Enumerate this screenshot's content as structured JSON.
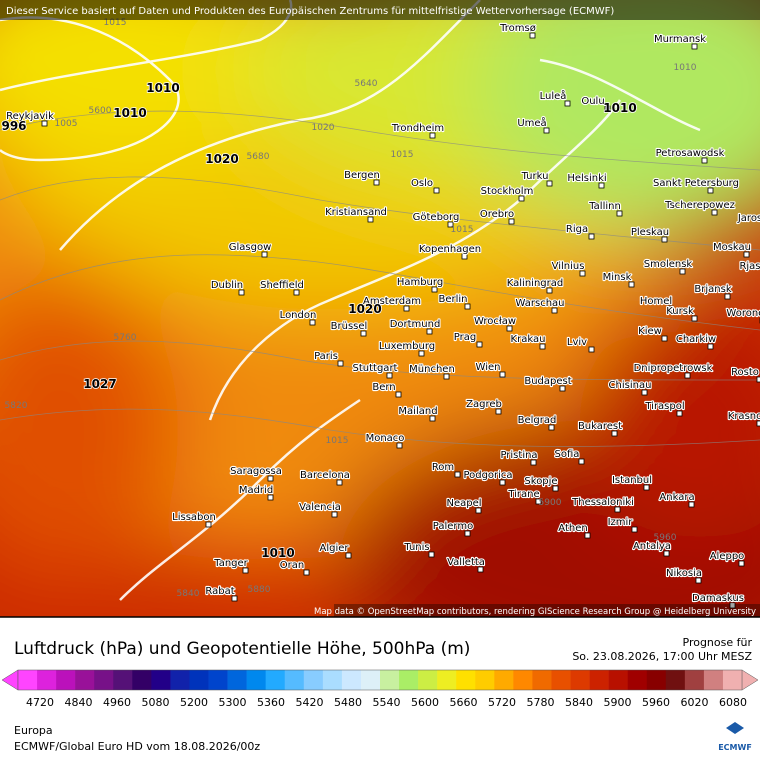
{
  "banner": "Dieser Service basiert auf Daten und Produkten des Europäischen Zentrums für mittelfristige Wettervorhersage (ECMWF)",
  "attribution": "Map data © OpenStreetMap contributors, rendering GIScience Research Group @ Heidelberg University",
  "cities": [
    "Tromsø",
    "Murmansk",
    "Luleå",
    "Oulu",
    "Reykjavik",
    "Trondheim",
    "Umeå",
    "Petrosawodsk",
    "Bergen",
    "Oslo",
    "Turku",
    "Helsinki",
    "Sankt Petersburg",
    "Stockholm",
    "Kristiansand",
    "Göteborg",
    "Orebro",
    "Tallinn",
    "Tscherepowez",
    "Jaros",
    "Riga",
    "Pleskau",
    "Kopenhagen",
    "Moskau",
    "Glasgow",
    "Vilnius",
    "Smolensk",
    "Rjas",
    "Minsk",
    "Hamburg",
    "Kaliningrad",
    "Dublin",
    "Sheffield",
    "Brjansk",
    "Amsterdam",
    "Berlin",
    "Warschau",
    "Homel",
    "Kursk",
    "Woronez",
    "London",
    "Brüssel",
    "Dortmund",
    "Wrocław",
    "Kiew",
    "Krakau",
    "Prag",
    "Lviv",
    "Charkiw",
    "Luxemburg",
    "Paris",
    "Stuttgart",
    "München",
    "Wien",
    "Dnipropetrowsk",
    "Chisinau",
    "Rosto",
    "Budapest",
    "Bern",
    "Tiraspol",
    "Zagreb",
    "Mailand",
    "Krasno",
    "Belgrad",
    "Bukarest",
    "Monaco",
    "Pristina",
    "Sofia",
    "Rom",
    "Podgorica",
    "Saragossa",
    "Barcelona",
    "Skopje",
    "Istanbul",
    "Madrid",
    "Ankara",
    "Tirane",
    "Thessaloniki",
    "Valencia",
    "Neapel",
    "Lissabon",
    "Palermo",
    "Athen",
    "Izmir",
    "Antalya",
    "Algier",
    "Tunis",
    "Aleppo",
    "Tanger",
    "Oran",
    "Valletta",
    "Nikosia",
    "Rabat",
    "Damaskus"
  ],
  "contour_labels": [
    "1015",
    "1010",
    "1010",
    "996",
    "1005",
    "1020",
    "1020",
    "1027",
    "1015",
    "1015",
    "1020",
    "1010",
    "1010",
    "1015",
    "1010",
    "5600",
    "5640",
    "5680",
    "5760",
    "5820",
    "5840",
    "5880",
    "5900",
    "5960"
  ],
  "legend": {
    "title": "Luftdruck (hPa) und Geopotentielle Höhe, 500hPa (m)",
    "forecast_label": "Prognose für",
    "forecast_time": "So. 23.08.2026, 17:00 Uhr MESZ",
    "colors": [
      "#ff44ff",
      "#dd22dd",
      "#bb11bb",
      "#991199",
      "#771188",
      "#551177",
      "#330066",
      "#220088",
      "#1122aa",
      "#0033bb",
      "#0044cc",
      "#0066dd",
      "#0088ee",
      "#22aaff",
      "#55bbff",
      "#88ccff",
      "#aaddff",
      "#cce8ff",
      "#ddf0f8",
      "#c8f0a0",
      "#aaee66",
      "#ccee44",
      "#eeee22",
      "#ffe000",
      "#ffcc00",
      "#ffaa00",
      "#ff8800",
      "#f06a00",
      "#e85000",
      "#dd3a00",
      "#cc2200",
      "#b81000",
      "#a00000",
      "#880000",
      "#701010",
      "#a04040",
      "#d08080",
      "#f0b0b0"
    ],
    "ticks": [
      4720,
      4840,
      4960,
      5080,
      5200,
      5300,
      5360,
      5420,
      5480,
      5540,
      5600,
      5660,
      5720,
      5780,
      5840,
      5900,
      5960,
      6020,
      6080
    ]
  },
  "footer": {
    "region": "Europa",
    "run": "ECMWF/Global Euro HD vom  18.08.2026/00z",
    "logo": "ECMWF"
  }
}
